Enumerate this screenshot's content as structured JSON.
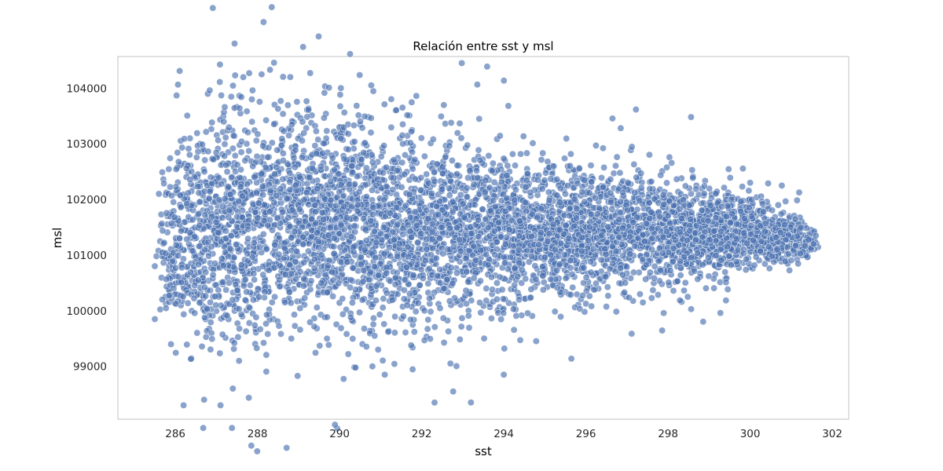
{
  "chart_data": {
    "type": "scatter",
    "title": "Relación entre sst y msl",
    "xlabel": "sst",
    "ylabel": "msl",
    "xlim": [
      284.6,
      302.4
    ],
    "ylim": [
      98050,
      104570
    ],
    "xticks": [
      286,
      288,
      290,
      292,
      294,
      296,
      298,
      300,
      302
    ],
    "yticks": [
      99000,
      100000,
      101000,
      102000,
      103000,
      104000
    ],
    "grid": false,
    "legend": "none",
    "marker_color": "#4c72b0",
    "marker_alpha": 0.65,
    "envelope": [
      {
        "x": 285.6,
        "y_min": 99700,
        "y_max": 102400,
        "density": 0.35
      },
      {
        "x": 286.0,
        "y_min": 99300,
        "y_max": 103300,
        "density": 0.6
      },
      {
        "x": 286.5,
        "y_min": 99200,
        "y_max": 103700,
        "density": 0.85
      },
      {
        "x": 287.0,
        "y_min": 99200,
        "y_max": 103800,
        "density": 0.95
      },
      {
        "x": 288.0,
        "y_min": 99300,
        "y_max": 103900,
        "density": 1.0
      },
      {
        "x": 289.0,
        "y_min": 99500,
        "y_max": 103900,
        "density": 1.0
      },
      {
        "x": 290.0,
        "y_min": 99700,
        "y_max": 103600,
        "density": 1.0
      },
      {
        "x": 291.0,
        "y_min": 99500,
        "y_max": 103500,
        "density": 0.95
      },
      {
        "x": 292.0,
        "y_min": 99600,
        "y_max": 103200,
        "density": 0.9
      },
      {
        "x": 293.0,
        "y_min": 99800,
        "y_max": 103100,
        "density": 0.85
      },
      {
        "x": 294.0,
        "y_min": 99900,
        "y_max": 102900,
        "density": 0.85
      },
      {
        "x": 295.0,
        "y_min": 100000,
        "y_max": 102700,
        "density": 0.85
      },
      {
        "x": 296.0,
        "y_min": 100200,
        "y_max": 102700,
        "density": 0.85
      },
      {
        "x": 297.0,
        "y_min": 100300,
        "y_max": 102600,
        "density": 0.85
      },
      {
        "x": 298.0,
        "y_min": 100400,
        "y_max": 102500,
        "density": 0.85
      },
      {
        "x": 299.0,
        "y_min": 100500,
        "y_max": 102300,
        "density": 0.85
      },
      {
        "x": 300.0,
        "y_min": 100700,
        "y_max": 102100,
        "density": 0.8
      },
      {
        "x": 301.0,
        "y_min": 100800,
        "y_max": 101800,
        "density": 0.6
      },
      {
        "x": 301.6,
        "y_min": 101000,
        "y_max": 101500,
        "density": 0.3
      }
    ],
    "notable_points": [
      {
        "x": 286.2,
        "y": 98300
      },
      {
        "x": 287.1,
        "y": 98300
      },
      {
        "x": 293.2,
        "y": 98350
      },
      {
        "x": 286.7,
        "y": 98400
      },
      {
        "x": 287.4,
        "y": 98600
      },
      {
        "x": 288.1,
        "y": 104250
      },
      {
        "x": 288.8,
        "y": 104200
      },
      {
        "x": 285.5,
        "y": 99850
      },
      {
        "x": 285.5,
        "y": 100800
      },
      {
        "x": 285.6,
        "y": 102100
      },
      {
        "x": 290.8,
        "y": 99000
      },
      {
        "x": 294.0,
        "y": 98850
      },
      {
        "x": 291.1,
        "y": 98850
      },
      {
        "x": 292.7,
        "y": 99050
      },
      {
        "x": 300.0,
        "y": 102300
      },
      {
        "x": 301.6,
        "y": 101350
      }
    ]
  }
}
